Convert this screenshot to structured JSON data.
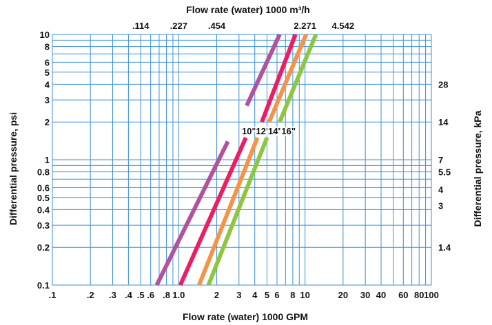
{
  "chart_data": {
    "type": "line",
    "title": "",
    "xlabel": "Flow rate (water) 1000 GPM",
    "x2label": "Flow rate (water) 1000 m³/h",
    "ylabel": "Differential pressure, psi",
    "y2label": "Differential pressure, kPa",
    "x_scale": "log",
    "y_scale": "log",
    "xlim": [
      0.1,
      100
    ],
    "ylim": [
      0.1,
      10
    ],
    "grid": true,
    "legend": "inline labels near center",
    "x_ticks": [
      {
        "value": 0.1,
        "label": ".1"
      },
      {
        "value": 0.2,
        "label": ".2"
      },
      {
        "value": 0.3,
        "label": ".3"
      },
      {
        "value": 0.4,
        "label": ".4"
      },
      {
        "value": 0.5,
        "label": ".5"
      },
      {
        "value": 0.6,
        "label": ".6"
      },
      {
        "value": 0.8,
        "label": ".8"
      },
      {
        "value": 1.0,
        "label": "1.0"
      },
      {
        "value": 2,
        "label": "2"
      },
      {
        "value": 3,
        "label": "3"
      },
      {
        "value": 4,
        "label": "4"
      },
      {
        "value": 5,
        "label": "5"
      },
      {
        "value": 6,
        "label": "6"
      },
      {
        "value": 8,
        "label": "8"
      },
      {
        "value": 10,
        "label": "10"
      },
      {
        "value": 20,
        "label": "20"
      },
      {
        "value": 30,
        "label": "30"
      },
      {
        "value": 40,
        "label": "40"
      },
      {
        "value": 60,
        "label": "60"
      },
      {
        "value": 80,
        "label": "80"
      },
      {
        "value": 100,
        "label": "100"
      }
    ],
    "x2_ticks": [
      {
        "value": 0.5,
        "label": ".114"
      },
      {
        "value": 1.0,
        "label": ".227"
      },
      {
        "value": 2.0,
        "label": ".454"
      },
      {
        "value": 10,
        "label": "2.271"
      },
      {
        "value": 20,
        "label": "4.542"
      }
    ],
    "y_ticks": [
      {
        "value": 0.1,
        "label": "0.1"
      },
      {
        "value": 0.2,
        "label": "0.2"
      },
      {
        "value": 0.3,
        "label": "0.3"
      },
      {
        "value": 0.4,
        "label": "0.4"
      },
      {
        "value": 0.5,
        "label": "0.5"
      },
      {
        "value": 0.6,
        "label": "0.6"
      },
      {
        "value": 0.8,
        "label": "0.8"
      },
      {
        "value": 1,
        "label": "1"
      },
      {
        "value": 2,
        "label": "2"
      },
      {
        "value": 3,
        "label": "3"
      },
      {
        "value": 4,
        "label": "4"
      },
      {
        "value": 5,
        "label": "5"
      },
      {
        "value": 6,
        "label": "6"
      },
      {
        "value": 8,
        "label": "8"
      },
      {
        "value": 10,
        "label": "10"
      }
    ],
    "y2_ticks": [
      {
        "value": 0.2,
        "label": "1.4"
      },
      {
        "value": 0.43,
        "label": "3"
      },
      {
        "value": 0.58,
        "label": "4"
      },
      {
        "value": 0.8,
        "label": "5.5"
      },
      {
        "value": 1.0,
        "label": "7"
      },
      {
        "value": 2.0,
        "label": "14"
      },
      {
        "value": 4.0,
        "label": "28"
      }
    ],
    "minor_x_grid": [
      0.7,
      0.9,
      7,
      9,
      50,
      70,
      90
    ],
    "minor_y_grid": [
      0.7,
      0.9,
      7,
      9
    ],
    "series": [
      {
        "name": "10\"",
        "color": "#b0529d",
        "segments": [
          [
            [
              0.67,
              0.1
            ],
            [
              2.45,
              1.4
            ]
          ],
          [
            [
              3.45,
              2.7
            ],
            [
              6.3,
              10
            ]
          ]
        ],
        "label_at": [
          3.6,
          1.6
        ]
      },
      {
        "name": "12\"",
        "color": "#e91e63",
        "segments": [
          [
            [
              1.03,
              0.1
            ],
            [
              3.4,
              1.5
            ]
          ],
          [
            [
              4.55,
              2.0
            ],
            [
              8.4,
              10
            ]
          ]
        ],
        "label_at": [
          4.65,
          1.6
        ]
      },
      {
        "name": "14\"",
        "color": "#f4934a",
        "segments": [
          [
            [
              1.45,
              0.1
            ],
            [
              4.2,
              1.5
            ]
          ],
          [
            [
              5.2,
              2.0
            ],
            [
              10.2,
              10
            ]
          ]
        ],
        "label_at": [
          5.8,
          1.6
        ]
      },
      {
        "name": "16\"",
        "color": "#8dc63f",
        "segments": [
          [
            [
              1.72,
              0.1
            ],
            [
              5.0,
              1.5
            ]
          ],
          [
            [
              6.3,
              2.0
            ],
            [
              12.2,
              10
            ]
          ]
        ],
        "label_at": [
          7.4,
          1.6
        ]
      }
    ]
  }
}
